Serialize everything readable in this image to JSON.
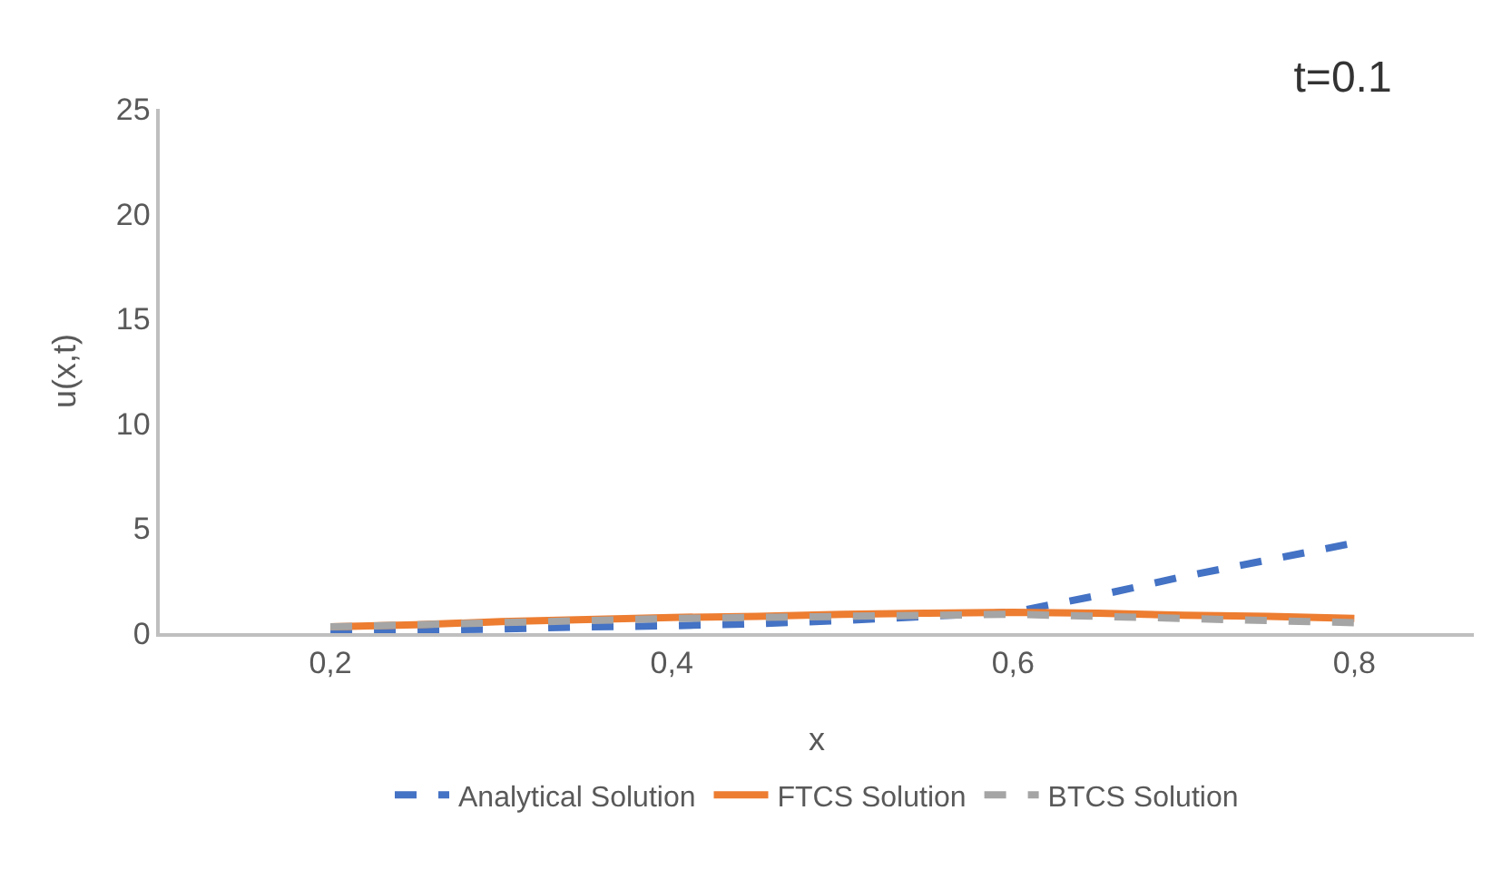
{
  "chart_data": {
    "type": "line",
    "title": "t=0.1",
    "xlabel": "x",
    "ylabel": "u(x,t)",
    "x": [
      0.2,
      0.25,
      0.3,
      0.35,
      0.4,
      0.45,
      0.5,
      0.55,
      0.6,
      0.65,
      0.7,
      0.75,
      0.8
    ],
    "series": [
      {
        "name": "Analytical Solution",
        "color": "#4472c4",
        "line_style": "dashed",
        "values": [
          0.1,
          0.15,
          0.2,
          0.3,
          0.35,
          0.45,
          0.6,
          0.8,
          1.0,
          1.8,
          2.7,
          3.5,
          4.3
        ]
      },
      {
        "name": "FTCS Solution",
        "color": "#ed7d31",
        "line_style": "solid",
        "values": [
          0.3,
          0.4,
          0.55,
          0.65,
          0.75,
          0.8,
          0.9,
          0.95,
          1.0,
          0.95,
          0.85,
          0.8,
          0.7
        ]
      },
      {
        "name": "BTCS Solution",
        "color": "#a5a5a5",
        "line_style": "dashed",
        "values": [
          0.3,
          0.4,
          0.5,
          0.6,
          0.7,
          0.75,
          0.8,
          0.85,
          0.9,
          0.8,
          0.7,
          0.6,
          0.5
        ]
      }
    ],
    "xlim": [
      0.1,
      0.87
    ],
    "xticks": [
      {
        "value": 0.2,
        "label": "0,2"
      },
      {
        "value": 0.4,
        "label": "0,4"
      },
      {
        "value": 0.6,
        "label": "0,6"
      },
      {
        "value": 0.8,
        "label": "0,8"
      }
    ],
    "ylim": [
      0,
      25
    ],
    "yticks": [
      0,
      5,
      10,
      15,
      20,
      25
    ],
    "grid": false,
    "legend": "bottom",
    "marker": "none"
  }
}
